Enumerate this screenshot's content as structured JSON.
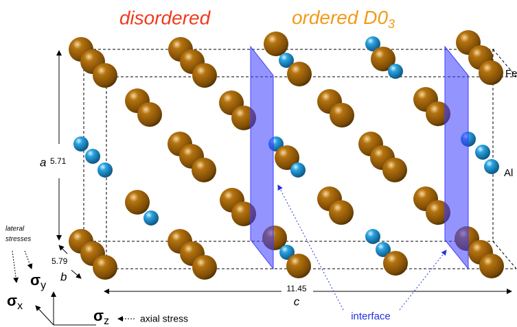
{
  "titles": {
    "disordered": "disordered",
    "ordered": {
      "text": "ordered D0",
      "subscript": "3"
    }
  },
  "atom_labels": [
    "Fe",
    "Al"
  ],
  "dimensions": [
    {
      "symbol": "a",
      "value": 5.71
    },
    {
      "symbol": "b",
      "value": 5.79
    },
    {
      "symbol": "c",
      "value": 11.45
    }
  ],
  "interface_label": "interface",
  "stresses": {
    "lateral": [
      "lateral",
      "stresses"
    ],
    "axes": [
      {
        "symbol": "σ",
        "subscript": "y"
      },
      {
        "symbol": "σ",
        "subscript": "x"
      },
      {
        "symbol": "σ",
        "subscript": "z"
      }
    ],
    "axial": "axial stress"
  }
}
